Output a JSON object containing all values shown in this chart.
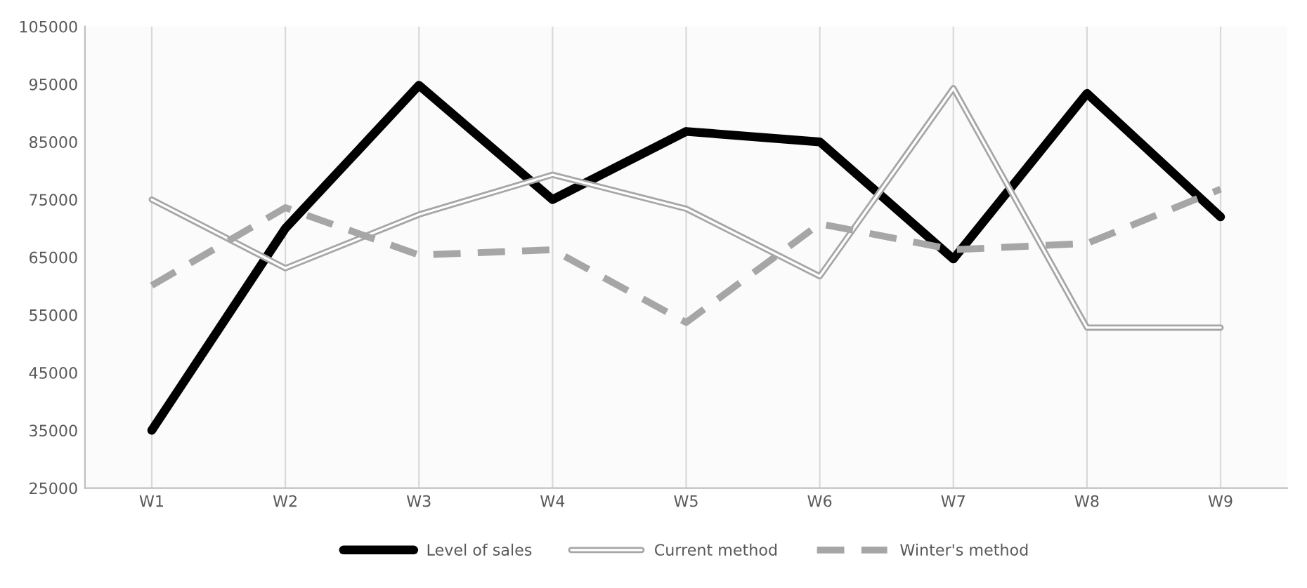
{
  "chart_data": {
    "type": "line",
    "categories": [
      "W1",
      "W2",
      "W3",
      "W4",
      "W5",
      "W6",
      "W7",
      "W8",
      "W9"
    ],
    "series": [
      {
        "name": "Level of sales",
        "color": "#000000",
        "line_style": "solid",
        "values": [
          35000,
          70000,
          94800,
          75000,
          86800,
          85000,
          64700,
          93400,
          72000
        ]
      },
      {
        "name": "Current method",
        "color": "#a6a6a6",
        "line_style": "solid",
        "values": [
          75000,
          63100,
          72400,
          79300,
          73400,
          61700,
          94300,
          52800,
          52800
        ]
      },
      {
        "name": "Winter's method",
        "color": "#a6a6a6",
        "line_style": "dashed",
        "values": [
          60100,
          73600,
          65400,
          66300,
          53700,
          70800,
          66300,
          67400,
          76800
        ]
      }
    ],
    "ylim": [
      25000,
      105000
    ],
    "yticks": [
      25000,
      35000,
      45000,
      55000,
      65000,
      75000,
      85000,
      95000,
      105000
    ],
    "grid": "x",
    "legend": "bottom",
    "marker": "none"
  }
}
